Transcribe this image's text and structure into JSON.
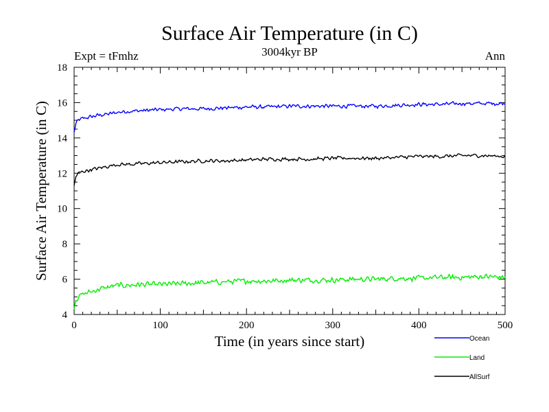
{
  "chart_data": {
    "type": "line",
    "title": "Surface Air Temperature (in C)",
    "subtitle": "3004kyr BP",
    "left_label": "Expt = tFmhz",
    "right_label": "Ann",
    "xlabel": "Time (in years since start)",
    "ylabel": "Surface Air Temperature (in C)",
    "xlim": [
      0,
      500
    ],
    "ylim": [
      4,
      18
    ],
    "xticks": [
      0,
      100,
      200,
      300,
      400,
      500
    ],
    "yticks": [
      4,
      6,
      8,
      10,
      12,
      14,
      16,
      18
    ],
    "grid": false,
    "legend_position": "bottom-right",
    "series": [
      {
        "name": "Ocean",
        "color": "#0000ff",
        "x": [
          0,
          2,
          5,
          10,
          20,
          30,
          40,
          50,
          60,
          80,
          100,
          125,
          150,
          175,
          200,
          225,
          250,
          275,
          300,
          325,
          350,
          375,
          400,
          425,
          450,
          475,
          500
        ],
        "values": [
          14.3,
          14.8,
          15.0,
          15.1,
          15.2,
          15.3,
          15.35,
          15.45,
          15.5,
          15.55,
          15.6,
          15.65,
          15.65,
          15.7,
          15.75,
          15.75,
          15.8,
          15.8,
          15.8,
          15.8,
          15.8,
          15.85,
          15.9,
          15.9,
          15.95,
          15.95,
          15.95
        ],
        "noise": 0.13
      },
      {
        "name": "Land",
        "color": "#00ee00",
        "x": [
          0,
          2,
          5,
          10,
          20,
          30,
          40,
          50,
          60,
          80,
          100,
          125,
          150,
          175,
          200,
          225,
          250,
          275,
          300,
          325,
          350,
          375,
          400,
          425,
          450,
          475,
          500
        ],
        "values": [
          4.3,
          4.8,
          5.0,
          5.15,
          5.3,
          5.45,
          5.55,
          5.65,
          5.65,
          5.7,
          5.7,
          5.75,
          5.8,
          5.85,
          5.9,
          5.9,
          5.95,
          5.95,
          5.95,
          6.0,
          6.0,
          6.05,
          6.05,
          6.1,
          6.1,
          6.15,
          6.1
        ],
        "noise": 0.18
      },
      {
        "name": "AllSurf",
        "color": "#000000",
        "x": [
          0,
          2,
          5,
          10,
          20,
          30,
          40,
          50,
          60,
          80,
          100,
          125,
          150,
          175,
          200,
          225,
          250,
          275,
          300,
          325,
          350,
          375,
          400,
          425,
          450,
          475,
          500
        ],
        "values": [
          11.3,
          11.8,
          12.0,
          12.1,
          12.2,
          12.3,
          12.4,
          12.5,
          12.5,
          12.55,
          12.6,
          12.65,
          12.7,
          12.7,
          12.75,
          12.8,
          12.8,
          12.8,
          12.85,
          12.85,
          12.85,
          12.9,
          12.95,
          12.95,
          13.0,
          13.0,
          12.95
        ],
        "noise": 0.12
      }
    ]
  }
}
